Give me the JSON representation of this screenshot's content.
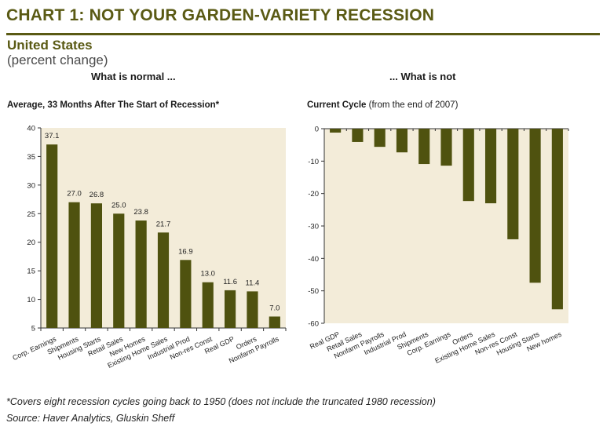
{
  "header": {
    "title": "CHART 1: NOT YOUR GARDEN-VARIETY RECESSION",
    "subtitle": "United States",
    "unit": "(percent change)",
    "left_heading": "What is normal ...",
    "right_heading": "... What is not"
  },
  "footer": {
    "note": "*Covers eight recession cycles going back to 1950 (does not include the truncated 1980 recession)",
    "source": "Source: Haver Analytics, Gluskin Sheff"
  },
  "colors": {
    "bar": "#4f520f",
    "plot_bg": "#f3ecd9",
    "title": "#5a5a14"
  },
  "chart_data": [
    {
      "type": "bar",
      "title": "Average, 33 Months After The Start of Recession*",
      "xlabel": "",
      "ylabel": "",
      "ylim": [
        5,
        40
      ],
      "yticks": [
        5,
        10,
        15,
        20,
        25,
        30,
        35,
        40
      ],
      "grid": false,
      "categories": [
        "Corp. Earnings",
        "Shipments",
        "Housing Starts",
        "Retail Sales",
        "New Homes",
        "Existing Home Sales",
        "Industrial Prod",
        "Non-res Const",
        "Real GDP",
        "Orders",
        "Nonfarm Payrolls"
      ],
      "values": [
        37.1,
        27.0,
        26.8,
        25.0,
        23.8,
        21.7,
        16.9,
        13.0,
        11.6,
        11.4,
        7.0
      ],
      "data_labels": [
        "37.1",
        "27.0",
        "26.8",
        "25.0",
        "23.8",
        "21.7",
        "16.9",
        "13.0",
        "11.6",
        "11.4",
        "7.0"
      ]
    },
    {
      "type": "bar",
      "title_bold": "Current Cycle",
      "title_rest": " (from the end of 2007)",
      "xlabel": "",
      "ylabel": "",
      "ylim": [
        -60,
        0
      ],
      "yticks": [
        0,
        -10,
        -20,
        -30,
        -40,
        -50,
        -60
      ],
      "grid": false,
      "categories": [
        "Real GDP",
        "Retail Sales",
        "Nonfarm Payrolls",
        "Industrial Prod",
        "Shipments",
        "Corp. Earnings",
        "Orders",
        "Existing Home Sales",
        "Non-res Const",
        "Housing Starts",
        "New homes"
      ],
      "values": [
        -1.2,
        -4.1,
        -5.6,
        -7.3,
        -10.9,
        -11.4,
        -22.3,
        -23.0,
        -34.1,
        -47.5,
        -55.7
      ]
    }
  ]
}
